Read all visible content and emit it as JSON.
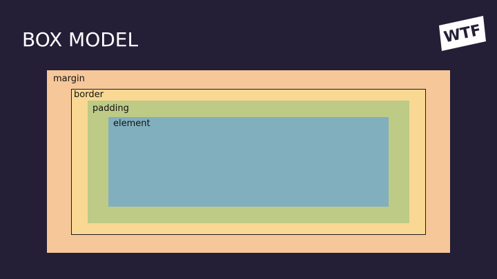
{
  "slide": {
    "title": "BOX MODEL",
    "logo_text": "WTF"
  },
  "boxes": {
    "margin_label": "margin",
    "border_label": "border",
    "padding_label": "padding",
    "element_label": "element"
  },
  "colors": {
    "background": "#251e37",
    "title": "#ffffff",
    "margin": "#f6c799",
    "border": "#f8d893",
    "padding": "#bdcb86",
    "element": "#82afbe"
  }
}
